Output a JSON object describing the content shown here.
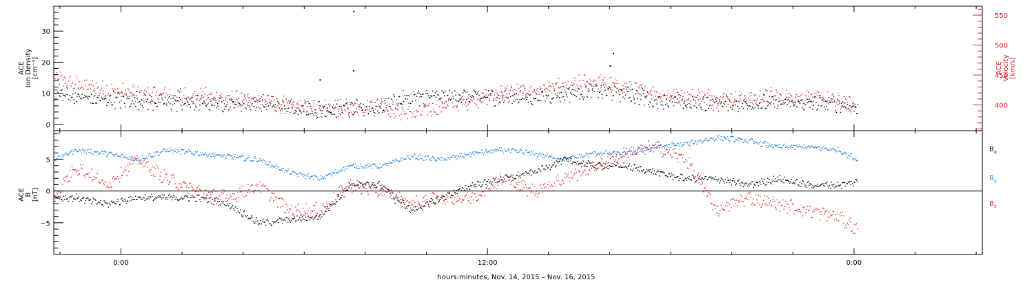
{
  "colors": {
    "black": "#000000",
    "red": "#e02020",
    "blue": "#1a7ee0"
  },
  "chart_data": [
    {
      "type": "scatter",
      "panel": "top",
      "ylabel_lines": [
        "ACE",
        "Ion Density",
        "[cm⁻³]"
      ],
      "y2label_lines": [
        "ACE",
        "Velocity",
        "[km/s]"
      ],
      "ylim": [
        -2,
        38
      ],
      "yticks": [
        0,
        10,
        20,
        30
      ],
      "y2lim": [
        357,
        565
      ],
      "y2ticks": [
        400,
        450,
        500,
        550
      ],
      "series": [
        {
          "color": "black",
          "axis": "left",
          "x": [
            -2.2,
            -1.5,
            -0.5,
            0.5,
            1.5,
            2.5,
            3.5,
            4.5,
            5.5,
            6.5,
            7.5,
            8.5,
            9.5,
            10.5,
            11.5,
            12.5,
            13.5,
            14.5,
            15.5,
            16.5,
            17.5,
            18.5,
            19.5,
            20.5,
            21.5,
            22.5,
            23.5,
            24.1
          ],
          "y": [
            10,
            9,
            8,
            8,
            7,
            7,
            7,
            7,
            6,
            5,
            5,
            6,
            9,
            9,
            9,
            9,
            9,
            10,
            11,
            10,
            8,
            7,
            7,
            7,
            7,
            7,
            7,
            5
          ],
          "outliers": [
            [
              7.6,
              36.5
            ],
            [
              7.6,
              17.5
            ],
            [
              16.1,
              23
            ],
            [
              16.0,
              19
            ],
            [
              6.5,
              14.5
            ]
          ]
        },
        {
          "color": "red",
          "axis": "right",
          "x": [
            -2.2,
            -1.5,
            -0.5,
            0.5,
            1.5,
            2.5,
            3.5,
            4.5,
            5.5,
            6.5,
            7.5,
            8.5,
            9.5,
            10.5,
            11.5,
            12.5,
            13.5,
            14.5,
            15.5,
            16.5,
            17.5,
            18.5,
            19.5,
            20.5,
            21.5,
            22.5,
            23.5,
            24.1
          ],
          "y": [
            445,
            435,
            425,
            418,
            418,
            415,
            410,
            405,
            400,
            392,
            395,
            400,
            385,
            400,
            410,
            420,
            425,
            430,
            440,
            430,
            420,
            415,
            412,
            410,
            415,
            412,
            405,
            400
          ]
        }
      ]
    },
    {
      "type": "scatter",
      "panel": "bottom",
      "ylabel_lines": [
        "ACE",
        "B",
        "[nT]"
      ],
      "ylim": [
        -10,
        9.5
      ],
      "yticks": [
        -5,
        0,
        5
      ],
      "zero_line": true,
      "series": [
        {
          "name": "Bx",
          "name_main": "B",
          "name_sub": "x",
          "color": "black",
          "x": [
            -2.2,
            -1.5,
            -0.5,
            0.5,
            1.5,
            2.5,
            3.5,
            4.5,
            5.5,
            6.5,
            7.5,
            8.5,
            9.5,
            10.5,
            11.5,
            12.5,
            13.5,
            14.5,
            15.5,
            16.5,
            17.5,
            18.5,
            19.5,
            20.5,
            21.5,
            22.5,
            23.5,
            24.1
          ],
          "y": [
            -1,
            -1,
            -2,
            -1,
            -1,
            -1,
            -2,
            -5,
            -4.5,
            -4,
            1,
            1,
            -3,
            -1,
            1,
            2,
            3,
            5,
            4,
            4,
            3,
            2,
            2,
            1,
            2,
            1,
            1,
            1.5
          ]
        },
        {
          "name": "By",
          "name_main": "B",
          "name_sub": "y",
          "color": "blue",
          "x": [
            -2.2,
            -1.5,
            -0.5,
            0.5,
            1.5,
            2.5,
            3.5,
            4.5,
            5.5,
            6.5,
            7.5,
            8.5,
            9.5,
            10.5,
            11.5,
            12.5,
            13.5,
            14.5,
            15.5,
            16.5,
            17.5,
            18.5,
            19.5,
            20.5,
            21.5,
            22.5,
            23.5,
            24.1
          ],
          "y": [
            5,
            6.5,
            6,
            5,
            6.5,
            6,
            5.5,
            5,
            3,
            2,
            4,
            4,
            5.5,
            5,
            6,
            6.5,
            6,
            5,
            6,
            6,
            7,
            7.5,
            8.5,
            8,
            7,
            7,
            6.5,
            5
          ]
        },
        {
          "name": "Bz",
          "name_main": "B",
          "name_sub": "z",
          "color": "red",
          "x": [
            -2.2,
            -1.5,
            -0.5,
            0.5,
            1.5,
            2.5,
            3.5,
            4.5,
            5.5,
            6.5,
            7.5,
            8.5,
            9.5,
            10.5,
            11.5,
            12.5,
            13.5,
            14.5,
            15.5,
            16.5,
            17.5,
            18.5,
            19.5,
            20.5,
            21.5,
            22.5,
            23.5,
            24.1
          ],
          "y": [
            -1,
            4,
            1,
            5,
            2,
            0,
            -1,
            1,
            -3,
            -3,
            1,
            0,
            -2,
            -1,
            -1,
            2,
            0,
            2,
            4,
            6,
            7,
            5,
            -3,
            -1,
            -2,
            -3,
            -4,
            -6
          ]
        }
      ]
    }
  ],
  "x_axis": {
    "label": "hours:minutes, Nov. 14, 2015 – Nov. 16, 2015",
    "xlim": [
      -2.2,
      28.2
    ],
    "major_ticks": [
      {
        "x": 0,
        "label": "0:00"
      },
      {
        "x": 12,
        "label": "12:00"
      },
      {
        "x": 24,
        "label": "0:00"
      }
    ],
    "minor_step": 2
  }
}
